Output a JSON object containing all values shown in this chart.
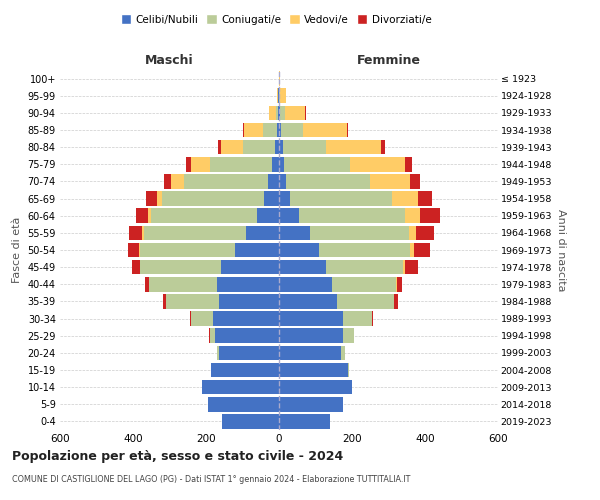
{
  "age_groups": [
    "0-4",
    "5-9",
    "10-14",
    "15-19",
    "20-24",
    "25-29",
    "30-34",
    "35-39",
    "40-44",
    "45-49",
    "50-54",
    "55-59",
    "60-64",
    "65-69",
    "70-74",
    "75-79",
    "80-84",
    "85-89",
    "90-94",
    "95-99",
    "100+"
  ],
  "birth_years": [
    "2019-2023",
    "2014-2018",
    "2009-2013",
    "2004-2008",
    "1999-2003",
    "1994-1998",
    "1989-1993",
    "1984-1988",
    "1979-1983",
    "1974-1978",
    "1969-1973",
    "1964-1968",
    "1959-1963",
    "1954-1958",
    "1949-1953",
    "1944-1948",
    "1939-1943",
    "1934-1938",
    "1929-1933",
    "1924-1928",
    "≤ 1923"
  ],
  "colors": {
    "celibe": "#4472C4",
    "coniugato": "#BBCC99",
    "vedovo": "#FFCC66",
    "divorziato": "#CC2222"
  },
  "maschi": {
    "celibe": [
      155,
      195,
      210,
      185,
      165,
      175,
      180,
      165,
      170,
      160,
      120,
      90,
      60,
      40,
      30,
      20,
      10,
      5,
      3,
      2,
      1
    ],
    "coniugato": [
      0,
      0,
      0,
      2,
      5,
      15,
      60,
      145,
      185,
      220,
      260,
      280,
      290,
      280,
      230,
      170,
      90,
      40,
      5,
      1,
      0
    ],
    "vedovo": [
      0,
      0,
      0,
      0,
      0,
      0,
      0,
      0,
      1,
      2,
      3,
      5,
      8,
      15,
      35,
      50,
      60,
      50,
      20,
      3,
      0
    ],
    "divorziato": [
      0,
      0,
      0,
      0,
      0,
      1,
      3,
      8,
      10,
      20,
      30,
      35,
      35,
      30,
      20,
      15,
      8,
      5,
      0,
      0,
      0
    ]
  },
  "femmine": {
    "celibe": [
      140,
      175,
      200,
      190,
      170,
      175,
      175,
      160,
      145,
      130,
      110,
      85,
      55,
      30,
      20,
      15,
      10,
      5,
      2,
      1,
      0
    ],
    "coniugato": [
      0,
      0,
      1,
      3,
      10,
      30,
      80,
      155,
      175,
      210,
      250,
      270,
      290,
      280,
      230,
      180,
      120,
      60,
      15,
      3,
      0
    ],
    "vedovo": [
      0,
      0,
      0,
      0,
      0,
      0,
      0,
      1,
      3,
      5,
      10,
      20,
      40,
      70,
      110,
      150,
      150,
      120,
      55,
      15,
      2
    ],
    "divorziato": [
      0,
      0,
      0,
      0,
      0,
      1,
      3,
      10,
      15,
      35,
      45,
      50,
      55,
      40,
      25,
      20,
      10,
      5,
      1,
      0,
      0
    ]
  },
  "title": "Popolazione per età, sesso e stato civile - 2024",
  "subtitle": "COMUNE DI CASTIGLIONE DEL LAGO (PG) - Dati ISTAT 1° gennaio 2024 - Elaborazione TUTTITALIA.IT",
  "xlabel_left": "Maschi",
  "xlabel_right": "Femmine",
  "ylabel_left": "Fasce di età",
  "ylabel_right": "Anni di nascita",
  "xlim": 600,
  "bg_color": "#ffffff",
  "grid_color": "#cccccc",
  "legend_labels": [
    "Celibi/Nubili",
    "Coniugati/e",
    "Vedovi/e",
    "Divorziati/e"
  ]
}
